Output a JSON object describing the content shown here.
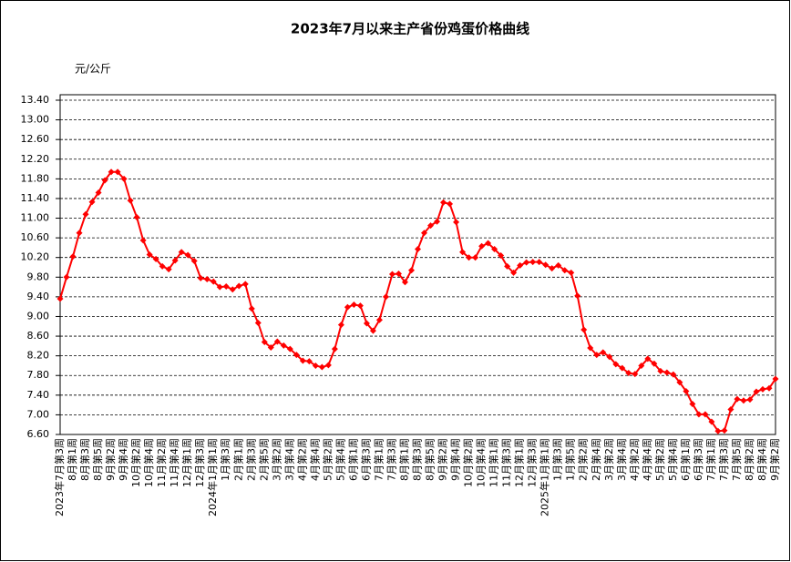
{
  "chart_data": {
    "type": "line",
    "title": "2023年7月以来主产省份鸡蛋价格曲线",
    "y_label": "元/公斤",
    "categories": [
      "2023年7月第3周",
      null,
      "8月第1周",
      null,
      "8月第3周",
      null,
      "8月第5周",
      null,
      "9月第2周",
      null,
      "9月第4周",
      null,
      "10月第2周",
      null,
      "10月第4周",
      null,
      "11月第2周",
      null,
      "11月第4周",
      null,
      "12月第1周",
      null,
      "12月第3周",
      null,
      "2024年1月第1周",
      null,
      "1月第3周",
      null,
      "2月第1周",
      null,
      "2月第3周",
      null,
      "2月第5周",
      null,
      "3月第2周",
      null,
      "3月第4周",
      null,
      "4月第2周",
      null,
      "4月第4周",
      null,
      "5月第2周",
      null,
      "5月第4周",
      null,
      "6月第1周",
      null,
      "6月第3周",
      null,
      "7月第1周",
      null,
      "7月第3周",
      null,
      "8月第1周",
      null,
      "8月第3周",
      null,
      "8月第5周",
      null,
      "9月第2周",
      null,
      "9月第4周",
      null,
      "10月第2周",
      null,
      "10月第4周",
      null,
      "11月第1周",
      null,
      "11月第3周",
      null,
      "12月第1周",
      null,
      "12月第3周",
      null,
      "2025年1月第1周",
      null,
      "1月第3周",
      null,
      "1月第5周",
      null,
      "2月第2周",
      null,
      "2月第4周",
      null,
      "3月第2周",
      null,
      "3月第4周",
      null,
      "4月第2周",
      null,
      "4月第4周",
      null,
      "5月第2周",
      null,
      "5月第4周",
      null,
      "6月第1周",
      null,
      "6月第3周",
      null,
      "7月第1周",
      null,
      "7月第3周",
      null,
      "7月第5周",
      null,
      "8月第2周",
      null,
      "8月第4周",
      null,
      "9月第2周"
    ],
    "series": [
      {
        "color": "#ff0000",
        "values": [
          9.36,
          9.8,
          10.22,
          10.7,
          11.08,
          11.33,
          11.52,
          11.77,
          11.94,
          11.94,
          11.8,
          11.36,
          11.02,
          10.55,
          10.26,
          10.17,
          10.02,
          9.96,
          10.14,
          10.31,
          10.25,
          10.13,
          9.78,
          9.76,
          9.71,
          9.6,
          9.61,
          9.55,
          9.62,
          9.66,
          9.16,
          8.87,
          8.48,
          8.37,
          8.49,
          8.41,
          8.34,
          8.22,
          8.1,
          8.09,
          8.0,
          7.97,
          8.01,
          8.34,
          8.83,
          9.19,
          9.24,
          9.22,
          8.86,
          8.71,
          8.93,
          9.4,
          9.86,
          9.87,
          9.7,
          9.94,
          10.37,
          10.7,
          10.85,
          10.93,
          11.32,
          11.29,
          10.92,
          10.31,
          10.2,
          10.2,
          10.43,
          10.49,
          10.37,
          10.24,
          10.02,
          9.89,
          10.04,
          10.1,
          10.11,
          10.11,
          10.05,
          9.98,
          10.04,
          9.94,
          9.89,
          9.42,
          8.73,
          8.36,
          8.22,
          8.27,
          8.18,
          8.03,
          7.95,
          7.85,
          7.83,
          8.0,
          8.14,
          8.04,
          7.89,
          7.86,
          7.82,
          7.66,
          7.48,
          7.22,
          7.01,
          7.01,
          6.86,
          6.67,
          6.68,
          7.11,
          7.32,
          7.29,
          7.31,
          7.47,
          7.52,
          7.54,
          7.73
        ]
      }
    ],
    "ylim": [
      6.6,
      13.4
    ],
    "yticks": [
      {
        "value": 6.6,
        "label": "6.60"
      },
      {
        "value": 7.0,
        "label": "7.00"
      },
      {
        "value": 7.4,
        "label": "7.40"
      },
      {
        "value": 7.8,
        "label": "7.80"
      },
      {
        "value": 8.2,
        "label": "8.20"
      },
      {
        "value": 8.6,
        "label": "8.60"
      },
      {
        "value": 9.0,
        "label": "9.00"
      },
      {
        "value": 9.4,
        "label": "9.40"
      },
      {
        "value": 9.8,
        "label": "9.80"
      },
      {
        "value": 10.2,
        "label": "10.20"
      },
      {
        "value": 10.6,
        "label": "10.60"
      },
      {
        "value": 11.0,
        "label": "11.00"
      },
      {
        "value": 11.4,
        "label": "11.40"
      },
      {
        "value": 11.8,
        "label": "11.80"
      },
      {
        "value": 12.2,
        "label": "12.20"
      },
      {
        "value": 12.6,
        "label": "12.60"
      },
      {
        "value": 13.0,
        "label": "13.00"
      },
      {
        "value": 13.4,
        "label": "13.40"
      }
    ],
    "grid": true
  }
}
